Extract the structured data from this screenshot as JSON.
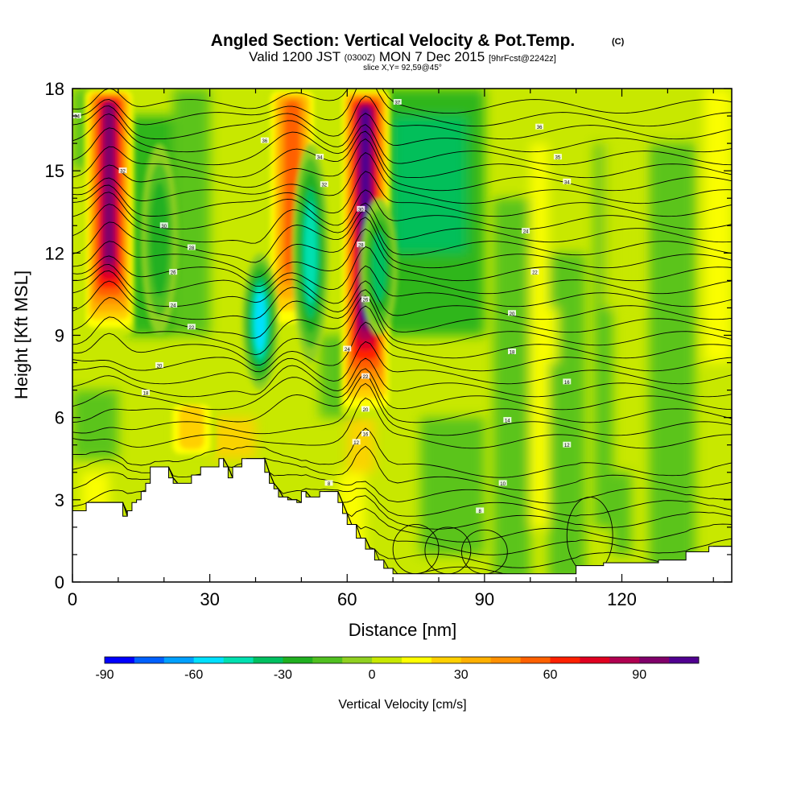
{
  "title": {
    "main": "Angled Section: Vertical Velocity & Pot.Temp.",
    "main_tag": "(C)",
    "valid_pre": "Valid 1200 JST",
    "valid_z": "(0300Z)",
    "valid_post": "MON 7 Dec 2015",
    "fcst": "[9hrFcst@2242z]",
    "slice": "slice X,Y= 92,59@45°"
  },
  "chart_data": {
    "type": "heatmap",
    "xlabel": "Distance [nm]",
    "ylabel": "Height [Kft MSL]",
    "xlim": [
      0,
      144
    ],
    "ylim": [
      0,
      18
    ],
    "x_ticks": [
      0,
      30,
      60,
      90,
      120
    ],
    "y_ticks": [
      0,
      3,
      6,
      9,
      12,
      15,
      18
    ],
    "colorbar": {
      "label": "Vertical Velocity [cm/s]",
      "min": -90,
      "max": 110,
      "step": 10,
      "tick_values": [
        -90,
        -60,
        -30,
        0,
        30,
        60,
        90
      ],
      "colors": [
        "#0000ff",
        "#0060ff",
        "#00a0ff",
        "#00e0ff",
        "#00e0b0",
        "#00c060",
        "#20b020",
        "#50c020",
        "#90d020",
        "#c8e800",
        "#ffff00",
        "#ffd000",
        "#ffb000",
        "#ff9000",
        "#ff6000",
        "#ff2000",
        "#e00020",
        "#b00050",
        "#80006a",
        "#500090"
      ]
    },
    "updrafts": [
      {
        "x": 8,
        "bottom": 9,
        "top": 18,
        "peak": 100
      },
      {
        "x": 48,
        "bottom": 9,
        "top": 18,
        "peak": 60
      },
      {
        "x": 64,
        "bottom": 6,
        "top": 18,
        "peak": 110
      },
      {
        "x": 26,
        "bottom": 4.5,
        "top": 6.5,
        "peak": 30
      }
    ],
    "downdrafts": [
      {
        "x": 41,
        "bottom": 7,
        "top": 12,
        "peak": -60
      },
      {
        "x": 52,
        "bottom": 8,
        "top": 16,
        "peak": -45
      },
      {
        "x": 67,
        "bottom": 9,
        "top": 14,
        "peak": -35
      },
      {
        "x": 19,
        "bottom": 9,
        "top": 16,
        "peak": -25
      }
    ],
    "terrain": [
      [
        0,
        2.6
      ],
      [
        3,
        2.9
      ],
      [
        10,
        2.9
      ],
      [
        11,
        2.4
      ],
      [
        12,
        2.6
      ],
      [
        13,
        2.9
      ],
      [
        14,
        3
      ],
      [
        15,
        3.3
      ],
      [
        16,
        3.6
      ],
      [
        17,
        4.2
      ],
      [
        20,
        4.2
      ],
      [
        21,
        3.8
      ],
      [
        22,
        3.6
      ],
      [
        25,
        3.6
      ],
      [
        26,
        3.9
      ],
      [
        28,
        4.2
      ],
      [
        31,
        4.2
      ],
      [
        32,
        4.5
      ],
      [
        33,
        4.2
      ],
      [
        34,
        3.8
      ],
      [
        35,
        4.2
      ],
      [
        37,
        4.5
      ],
      [
        40,
        4.5
      ],
      [
        42,
        4
      ],
      [
        43,
        3.6
      ],
      [
        44,
        3.4
      ],
      [
        45,
        3.1
      ],
      [
        47,
        3
      ],
      [
        48,
        3
      ],
      [
        49,
        2.9
      ],
      [
        50,
        3.3
      ],
      [
        51,
        3.1
      ],
      [
        53,
        3.1
      ],
      [
        54,
        3.3
      ],
      [
        57,
        3.3
      ],
      [
        58,
        2.9
      ],
      [
        59,
        2.5
      ],
      [
        60,
        2.1
      ],
      [
        62,
        1.6
      ],
      [
        64,
        1.2
      ],
      [
        66,
        0.8
      ],
      [
        68,
        0.5
      ],
      [
        70,
        0.3
      ],
      [
        108,
        0.3
      ],
      [
        110,
        0.6
      ],
      [
        115,
        0.6
      ],
      [
        116,
        0.7
      ],
      [
        127,
        0.7
      ],
      [
        128,
        0.8
      ],
      [
        133,
        0.8
      ],
      [
        134,
        1.1
      ],
      [
        138,
        1.1
      ],
      [
        139,
        1.3
      ],
      [
        144,
        1.3
      ]
    ],
    "theta_labels": [
      {
        "x": 1,
        "y": 17,
        "text": "34"
      },
      {
        "x": 11,
        "y": 15,
        "text": "32"
      },
      {
        "x": 20,
        "y": 13,
        "text": "30"
      },
      {
        "x": 26,
        "y": 12.2,
        "text": "28"
      },
      {
        "x": 22,
        "y": 11.3,
        "text": "26"
      },
      {
        "x": 22,
        "y": 10.1,
        "text": "24"
      },
      {
        "x": 26,
        "y": 9.3,
        "text": "22"
      },
      {
        "x": 19,
        "y": 7.9,
        "text": "20"
      },
      {
        "x": 16,
        "y": 6.9,
        "text": "18"
      },
      {
        "x": 42,
        "y": 16.1,
        "text": "36"
      },
      {
        "x": 54,
        "y": 15.5,
        "text": "34"
      },
      {
        "x": 55,
        "y": 14.5,
        "text": "32"
      },
      {
        "x": 63,
        "y": 13.6,
        "text": "30"
      },
      {
        "x": 63,
        "y": 12.3,
        "text": "28"
      },
      {
        "x": 64,
        "y": 10.3,
        "text": "26"
      },
      {
        "x": 60,
        "y": 8.5,
        "text": "24"
      },
      {
        "x": 64,
        "y": 7.5,
        "text": "22"
      },
      {
        "x": 64,
        "y": 6.3,
        "text": "20"
      },
      {
        "x": 64,
        "y": 5.4,
        "text": "16"
      },
      {
        "x": 62,
        "y": 5.1,
        "text": "12"
      },
      {
        "x": 56,
        "y": 3.6,
        "text": "8"
      },
      {
        "x": 71,
        "y": 17.5,
        "text": "37"
      },
      {
        "x": 102,
        "y": 16.6,
        "text": "36"
      },
      {
        "x": 106,
        "y": 15.5,
        "text": "35"
      },
      {
        "x": 108,
        "y": 14.6,
        "text": "34"
      },
      {
        "x": 99,
        "y": 12.8,
        "text": "24"
      },
      {
        "x": 101,
        "y": 11.3,
        "text": "22"
      },
      {
        "x": 96,
        "y": 9.8,
        "text": "20"
      },
      {
        "x": 96,
        "y": 8.4,
        "text": "18"
      },
      {
        "x": 108,
        "y": 7.3,
        "text": "16"
      },
      {
        "x": 95,
        "y": 5.9,
        "text": "14"
      },
      {
        "x": 108,
        "y": 5,
        "text": "12"
      },
      {
        "x": 94,
        "y": 3.6,
        "text": "10"
      },
      {
        "x": 89,
        "y": 2.6,
        "text": "8"
      }
    ]
  }
}
